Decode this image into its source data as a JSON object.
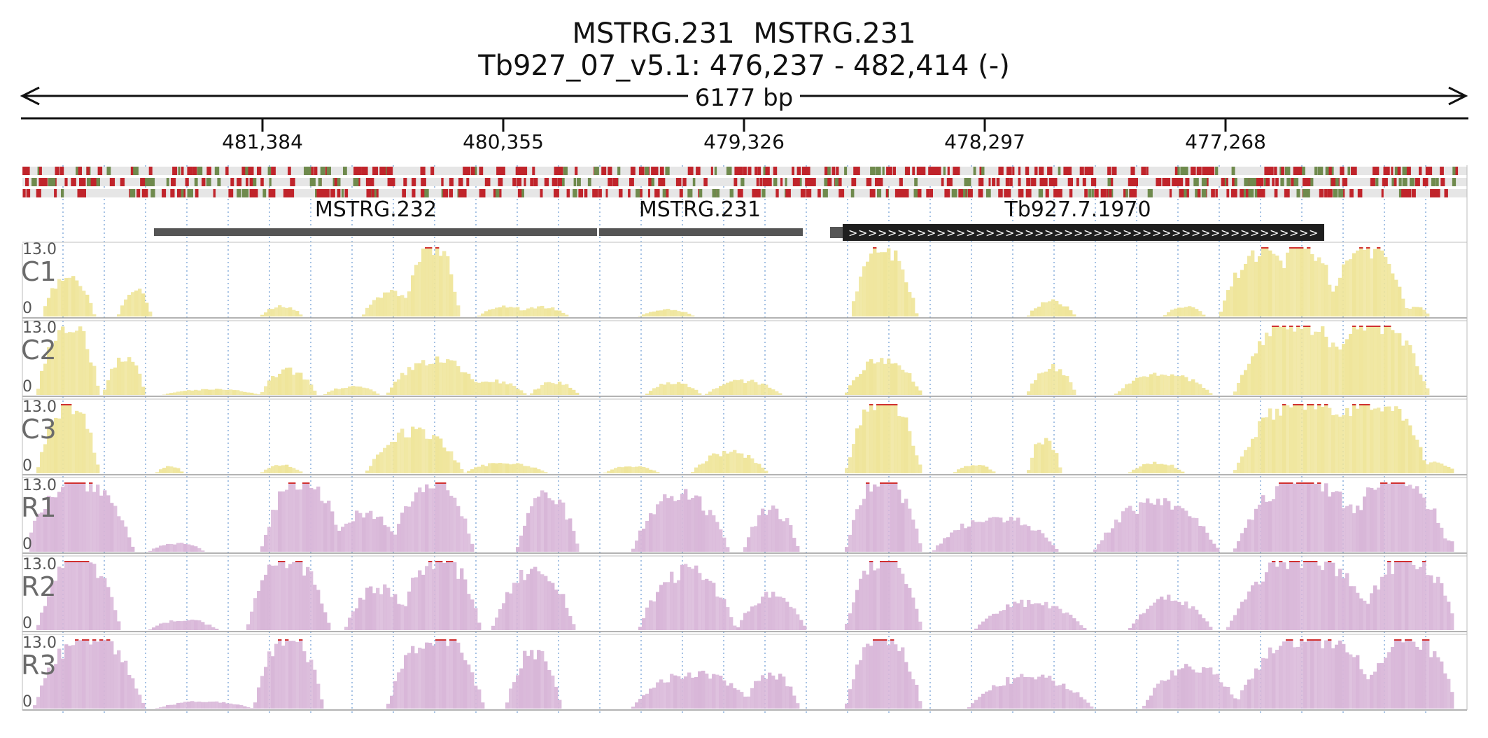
{
  "header": {
    "gene_names": "MSTRG.231 MSTRG.231",
    "locus": "Tb927_07_v5.1: 476,237 - 482,414 (-)",
    "span_label": "6177 bp"
  },
  "ruler": {
    "ticks": [
      "481,384",
      "480,355",
      "479,326",
      "478,297",
      "477,268"
    ]
  },
  "colors": {
    "coverage_c": "#efe59a",
    "coverage_r": "#d8b6d8",
    "clipped_marker": "#d03030",
    "variant_red": "#c0242b",
    "variant_green": "#6f8a4d",
    "feature_gray": "#555555",
    "feature_black": "#1e1e1e",
    "grid_line": "#7fa9d8"
  },
  "features": [
    {
      "label": "MSTRG.232"
    },
    {
      "label": "MSTRG.231"
    },
    {
      "label": "Tb927.7.1970"
    }
  ],
  "coverage_tracks": [
    {
      "name": "C1",
      "max": "13.0",
      "min": "0"
    },
    {
      "name": "C2",
      "max": "13.0",
      "min": "0"
    },
    {
      "name": "C3",
      "max": "13.0",
      "min": "0"
    },
    {
      "name": "R1",
      "max": "13.0",
      "min": "0"
    },
    {
      "name": "R2",
      "max": "13.0",
      "min": "0"
    },
    {
      "name": "R3",
      "max": "13.0",
      "min": "0"
    }
  ]
}
